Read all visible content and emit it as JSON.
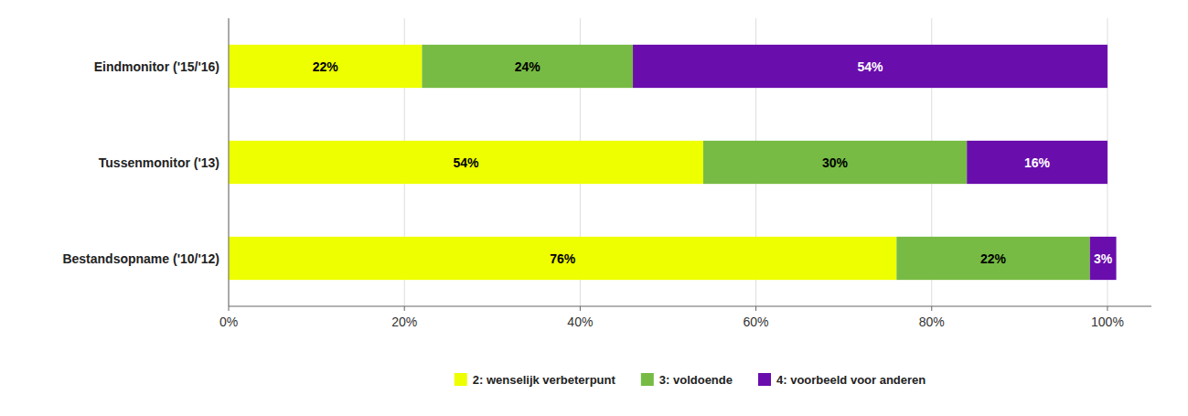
{
  "chart_data": {
    "type": "bar",
    "orientation": "horizontal",
    "stacked": true,
    "categories": [
      "Bestandsopname ('10/'12)",
      "Tussenmonitor ('13)",
      "Eindmonitor ('15/'16)"
    ],
    "series": [
      {
        "name": "2: wenselijk verbeterpunt",
        "color": "#EEFF00",
        "values": [
          76,
          54,
          22
        ],
        "value_labels": [
          "76%",
          "54%",
          "22%"
        ]
      },
      {
        "name": "3: voldoende",
        "color": "#77BB44",
        "values": [
          22,
          30,
          24
        ],
        "value_labels": [
          "22%",
          "30%",
          "24%"
        ]
      },
      {
        "name": "4: voorbeeld voor anderen",
        "color": "#6A0DAD",
        "values": [
          3,
          16,
          54
        ],
        "value_labels": [
          "3%",
          "16%",
          "54%"
        ]
      }
    ],
    "xlim": [
      0,
      105
    ],
    "xticks": [
      {
        "value": 0,
        "label": "0%"
      },
      {
        "value": 20,
        "label": "20%"
      },
      {
        "value": 40,
        "label": "40%"
      },
      {
        "value": 60,
        "label": "60%"
      },
      {
        "value": 80,
        "label": "80%"
      },
      {
        "value": 100,
        "label": "100%"
      }
    ],
    "grid": true,
    "data_labels": true,
    "legend": "bottom"
  }
}
